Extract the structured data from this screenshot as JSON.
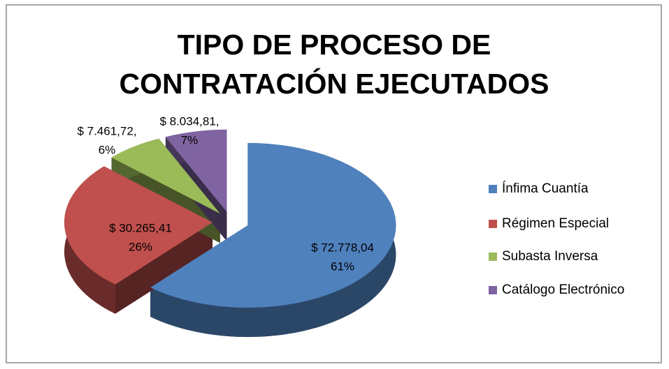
{
  "chart_data": {
    "type": "pie",
    "title": "TIPO DE PROCESO DE CONTRATACIÓN EJECUTADOS",
    "categories": [
      "Ínfima Cuantía",
      "Régimen Especial",
      "Subasta Inversa",
      "Catálogo Electrónico"
    ],
    "values": [
      72778.04,
      30265.41,
      7461.72,
      8034.81
    ],
    "value_labels": [
      "$ 72.778,04",
      "$ 30.265,41",
      "$ 7.461,72,",
      "$ 8.034,81,"
    ],
    "percentages": [
      61,
      26,
      6,
      7
    ],
    "percentage_labels": [
      "61%",
      "26%",
      "6%",
      "7%"
    ],
    "colors": [
      "#4f81bd",
      "#c0504d",
      "#9bbb59",
      "#8064a2"
    ],
    "legend": "right"
  }
}
